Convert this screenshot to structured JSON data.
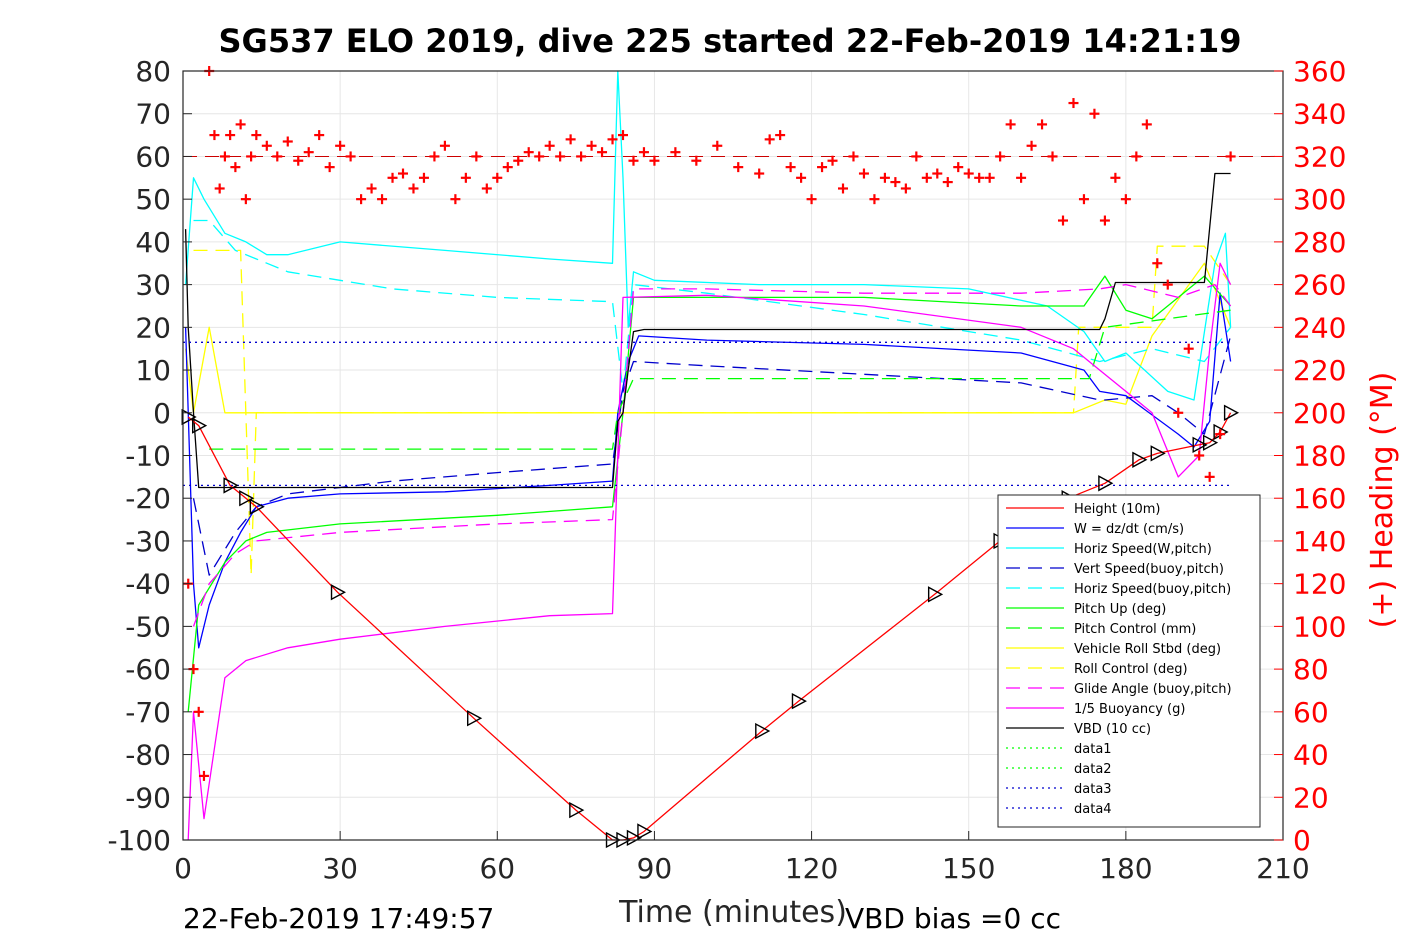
{
  "chart_data": {
    "type": "line",
    "title": "SG537 ELO 2019, dive 225 started 22-Feb-2019 14:21:19",
    "xlabel": "Time (minutes)",
    "ylabel": "",
    "y2label": "(+) Heading (°M)",
    "xlim": [
      0,
      210
    ],
    "ylim": [
      -100,
      80
    ],
    "y2lim": [
      0,
      360
    ],
    "xticks": [
      "0",
      "30",
      "60",
      "90",
      "120",
      "150",
      "180",
      "210"
    ],
    "yticks": [
      "80",
      "70",
      "60",
      "50",
      "40",
      "30",
      "20",
      "10",
      "0",
      "-10",
      "-20",
      "-30",
      "-40",
      "-50",
      "-60",
      "-70",
      "-80",
      "-90",
      "-100"
    ],
    "y2ticks": [
      "360",
      "340",
      "320",
      "300",
      "280",
      "260",
      "240",
      "220",
      "200",
      "180",
      "160",
      "140",
      "120",
      "100",
      "80",
      "60",
      "40",
      "20",
      "0"
    ],
    "grid": true,
    "legend_position": "bottom-right",
    "footer_left": "22-Feb-2019 17:49:57",
    "footer_right": "VBD bias =0 cc",
    "heading_reference": 320,
    "series": [
      {
        "name": "Height (10m)",
        "color": "#ff0000",
        "style": "solid",
        "x": [
          1,
          3,
          9,
          12,
          14,
          29.5,
          55.5,
          75,
          82,
          84,
          86,
          88,
          110.5,
          117.5,
          143.5,
          156,
          169,
          176,
          182.5,
          186,
          194,
          196,
          198,
          200
        ],
        "y": [
          -1,
          -3,
          -17,
          -20,
          -22,
          -42,
          -71.5,
          -93,
          -100,
          -100,
          -99.5,
          -98,
          -74.5,
          -67.5,
          -42.5,
          -30,
          -20,
          -16.5,
          -11,
          -9.5,
          -7.5,
          -7,
          -4.5,
          0
        ]
      },
      {
        "name": "W = dz/dt (cm/s)",
        "color": "#0000ff",
        "style": "solid",
        "x": [
          0.5,
          2,
          3,
          5,
          8,
          11,
          14,
          20,
          30,
          50,
          70,
          82,
          83,
          85,
          87,
          100,
          130,
          160,
          172,
          175,
          180,
          190,
          193,
          196,
          198,
          200
        ],
        "y": [
          20,
          -40,
          -55,
          -45,
          -35,
          -28,
          -22,
          -20,
          -19,
          -18.5,
          -17,
          -16,
          0,
          12,
          18,
          17,
          16,
          14,
          10,
          5,
          4,
          -5,
          -8,
          -2,
          28,
          12
        ]
      },
      {
        "name": "Horiz Speed(W,pitch)",
        "color": "#00ffff",
        "style": "solid",
        "x": [
          0.5,
          2,
          4,
          8,
          12,
          16,
          20,
          30,
          50,
          70,
          82,
          83,
          84,
          85,
          86,
          90,
          110,
          130,
          150,
          165,
          172,
          176,
          180,
          188,
          193,
          197,
          199,
          200
        ],
        "y": [
          30,
          55,
          50,
          42,
          40,
          37,
          37,
          40,
          38,
          36,
          35,
          80,
          55,
          20,
          33,
          31,
          30,
          30,
          29,
          25,
          19,
          12,
          14,
          5,
          3,
          35,
          42,
          20
        ]
      },
      {
        "name": "Vert Speed(buoy,pitch)",
        "color": "#0000cd",
        "style": "dash",
        "x": [
          2,
          5,
          10,
          14,
          20,
          40,
          60,
          82,
          84,
          86,
          100,
          130,
          160,
          175,
          176,
          185,
          190,
          195,
          200
        ],
        "y": [
          -20,
          -38,
          -28,
          -22,
          -19,
          -16,
          -14,
          -12,
          5,
          12,
          11,
          9,
          7,
          3,
          3,
          4,
          0,
          -5,
          18
        ]
      },
      {
        "name": "Horiz Speed(buoy,pitch)",
        "color": "#00ffff",
        "style": "dash",
        "x": [
          2,
          5,
          10,
          20,
          40,
          60,
          82,
          84,
          86,
          100,
          130,
          160,
          175,
          185,
          195,
          200
        ],
        "y": [
          45,
          45,
          38,
          33,
          29,
          27,
          26,
          5,
          30,
          28,
          23,
          17,
          12,
          15,
          12,
          20
        ]
      },
      {
        "name": "Pitch Up (deg)",
        "color": "#00ff00",
        "style": "solid",
        "x": [
          1,
          3,
          8,
          12,
          16,
          30,
          60,
          82,
          84,
          86,
          100,
          130,
          160,
          172,
          176,
          180,
          185,
          195,
          200
        ],
        "y": [
          -70,
          -45,
          -35,
          -30,
          -28,
          -26,
          -24,
          -22,
          0,
          27,
          27,
          27,
          25,
          25,
          32,
          24,
          22,
          32,
          25
        ]
      },
      {
        "name": "Pitch Control (mm)",
        "color": "#00ff00",
        "style": "dash",
        "x": [
          5,
          82,
          83,
          86,
          172,
          173,
          176,
          200
        ],
        "y": [
          -8.5,
          -8.5,
          0,
          8,
          8,
          8,
          20,
          24
        ]
      },
      {
        "name": "Vehicle Roll Stbd (deg)",
        "color": "#ffff00",
        "style": "solid",
        "x": [
          0.5,
          2,
          5,
          8,
          12,
          30,
          60,
          82,
          86,
          120,
          160,
          170,
          176,
          180,
          185,
          195,
          200
        ],
        "y": [
          15,
          0,
          20,
          0,
          0,
          0,
          0,
          0,
          0,
          0,
          0,
          0,
          3,
          2,
          18,
          35,
          20
        ]
      },
      {
        "name": "Roll Control (deg)",
        "color": "#ffff00",
        "style": "dash",
        "x": [
          2,
          11,
          13,
          14,
          82,
          86,
          170,
          171,
          185,
          186,
          195,
          200
        ],
        "y": [
          38,
          38,
          -38,
          0,
          0,
          0,
          0,
          20,
          20,
          39,
          39,
          30
        ]
      },
      {
        "name": "Glide Angle (buoy,pitch)",
        "color": "#ff00ff",
        "style": "dash",
        "x": [
          2,
          5,
          10,
          14,
          30,
          60,
          82,
          84,
          86,
          100,
          130,
          160,
          175,
          180,
          190,
          197,
          200
        ],
        "y": [
          -50,
          -40,
          -33,
          -30,
          -28,
          -26,
          -25,
          0,
          29,
          29,
          28,
          28,
          29,
          30,
          27,
          30,
          25
        ]
      },
      {
        "name": "1/5 Buoyancy (g)",
        "color": "#ff00ff",
        "style": "solid",
        "x": [
          1,
          2,
          4,
          8,
          12,
          20,
          30,
          50,
          70,
          82,
          83,
          84,
          100,
          130,
          160,
          170,
          175,
          180,
          185,
          190,
          194,
          196,
          198,
          200
        ],
        "y": [
          -100,
          -70,
          -95,
          -62,
          -58,
          -55,
          -53,
          -50,
          -47.5,
          -47,
          -10,
          27,
          27.5,
          25,
          20,
          15,
          10,
          5,
          0,
          -15,
          -10,
          15,
          35,
          30
        ]
      },
      {
        "name": "VBD (10 cc)",
        "color": "#000000",
        "style": "solid",
        "x": [
          0.5,
          1,
          2,
          3,
          82,
          83,
          84,
          85,
          86,
          88,
          100,
          140,
          175,
          176,
          178,
          195,
          197,
          200
        ],
        "y": [
          43,
          20,
          0,
          -17.5,
          -17.5,
          -2,
          0,
          10,
          19,
          19.5,
          19.5,
          19.5,
          19.5,
          22,
          30.5,
          30.5,
          56,
          56
        ]
      },
      {
        "name": "data1",
        "color": "#00ff00",
        "style": "dot",
        "x": [],
        "y": []
      },
      {
        "name": "data2",
        "color": "#00ff00",
        "style": "dot",
        "x": [],
        "y": []
      },
      {
        "name": "data3",
        "color": "#0000cd",
        "style": "dot",
        "x": [
          0,
          200
        ],
        "y": [
          16.5,
          16.5
        ]
      },
      {
        "name": "data4",
        "color": "#0000cd",
        "style": "dot",
        "x": [
          0,
          200
        ],
        "y": [
          -17,
          -17
        ]
      }
    ],
    "heading": {
      "name": "(+) Heading (°M)",
      "color": "#ff0000",
      "marker": "+",
      "x": [
        1,
        2,
        3,
        4,
        5,
        6,
        7,
        8,
        9,
        10,
        11,
        12,
        13,
        14,
        16,
        18,
        20,
        22,
        24,
        26,
        28,
        30,
        32,
        34,
        36,
        38,
        40,
        42,
        44,
        46,
        48,
        50,
        52,
        54,
        56,
        58,
        60,
        62,
        64,
        66,
        68,
        70,
        72,
        74,
        76,
        78,
        80,
        82,
        84,
        86,
        88,
        90,
        94,
        98,
        102,
        106,
        110,
        112,
        114,
        116,
        118,
        120,
        122,
        124,
        126,
        128,
        130,
        132,
        134,
        136,
        138,
        140,
        142,
        144,
        146,
        148,
        150,
        152,
        154,
        156,
        158,
        160,
        162,
        164,
        166,
        168,
        170,
        172,
        174,
        176,
        178,
        180,
        182,
        184,
        186,
        188,
        190,
        192,
        194,
        196,
        198,
        200
      ],
      "y": [
        120,
        80,
        60,
        30,
        360,
        330,
        305,
        320,
        330,
        315,
        335,
        300,
        320,
        330,
        325,
        320,
        327,
        318,
        322,
        330,
        315,
        325,
        320,
        300,
        305,
        300,
        310,
        312,
        305,
        310,
        320,
        325,
        300,
        310,
        320,
        305,
        310,
        315,
        318,
        322,
        320,
        325,
        320,
        328,
        320,
        325,
        322,
        328,
        330,
        318,
        322,
        318,
        322,
        318,
        325,
        315,
        312,
        328,
        330,
        315,
        310,
        300,
        315,
        318,
        305,
        320,
        312,
        300,
        310,
        308,
        305,
        320,
        310,
        312,
        308,
        315,
        312,
        310,
        310,
        320,
        335,
        310,
        325,
        335,
        320,
        290,
        345,
        300,
        340,
        290,
        310,
        300,
        320,
        335,
        270,
        260,
        200,
        230,
        180,
        170,
        190,
        320
      ]
    }
  }
}
